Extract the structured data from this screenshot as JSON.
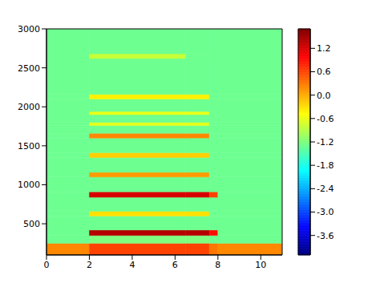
{
  "chart_data": {
    "type": "heatmap",
    "xlim": [
      0,
      11
    ],
    "xticks": [
      0,
      2,
      4,
      6,
      8,
      10
    ],
    "ylim": [
      100,
      3000
    ],
    "yticks": [
      500,
      1000,
      1500,
      2000,
      2500,
      3000
    ],
    "x_edges": [
      0,
      2,
      6.5,
      7.6,
      8,
      11
    ],
    "y_edges": [
      100,
      250,
      350,
      420,
      600,
      660,
      840,
      910,
      1100,
      1160,
      1350,
      1410,
      1600,
      1660,
      1760,
      1800,
      1900,
      1940,
      2100,
      2160,
      2620,
      2680,
      3000
    ],
    "cells": [
      [
        0.2,
        0.6,
        0.6,
        0.3,
        0.2
      ],
      [
        -1.3,
        -1.2,
        -1.2,
        -1.3,
        -1.3
      ],
      [
        -1.3,
        1.4,
        1.4,
        0.9,
        -1.3
      ],
      [
        -1.3,
        -1.3,
        -1.3,
        -1.3,
        -1.3
      ],
      [
        -1.3,
        -0.3,
        -0.3,
        -1.3,
        -1.3
      ],
      [
        -1.3,
        -1.3,
        -1.3,
        -1.3,
        -1.3
      ],
      [
        -1.3,
        1.2,
        1.2,
        0.6,
        -1.3
      ],
      [
        -1.3,
        -1.3,
        -1.3,
        -1.3,
        -1.3
      ],
      [
        -1.3,
        0.1,
        0.1,
        -1.3,
        -1.3
      ],
      [
        -1.3,
        -1.3,
        -1.3,
        -1.3,
        -1.3
      ],
      [
        -1.3,
        -0.2,
        -0.2,
        -1.3,
        -1.3
      ],
      [
        -1.3,
        -1.3,
        -1.3,
        -1.3,
        -1.3
      ],
      [
        -1.3,
        0.2,
        0.2,
        -1.3,
        -1.3
      ],
      [
        -1.3,
        -1.3,
        -1.3,
        -1.3,
        -1.3
      ],
      [
        -1.3,
        -0.6,
        -0.6,
        -1.3,
        -1.3
      ],
      [
        -1.3,
        -1.3,
        -1.3,
        -1.3,
        -1.3
      ],
      [
        -1.3,
        -0.6,
        -0.6,
        -1.3,
        -1.3
      ],
      [
        -1.3,
        -1.3,
        -1.3,
        -1.3,
        -1.3
      ],
      [
        -1.3,
        -0.4,
        -0.4,
        -1.3,
        -1.3
      ],
      [
        -1.3,
        -1.3,
        -1.3,
        -1.3,
        -1.3
      ],
      [
        -1.3,
        -0.8,
        -1.3,
        -1.3,
        -1.3
      ],
      [
        -1.3,
        -1.3,
        -1.3,
        -1.3,
        -1.3
      ]
    ],
    "color_range": [
      -4.1,
      1.7
    ],
    "color_ticks": [
      -3.6,
      {
        "value": -3,
        "label": "-3.0"
      },
      -2.4,
      -1.8,
      -1.2,
      -0.6,
      {
        "value": 0,
        "label": "0.0"
      },
      0.6,
      1.2
    ]
  }
}
